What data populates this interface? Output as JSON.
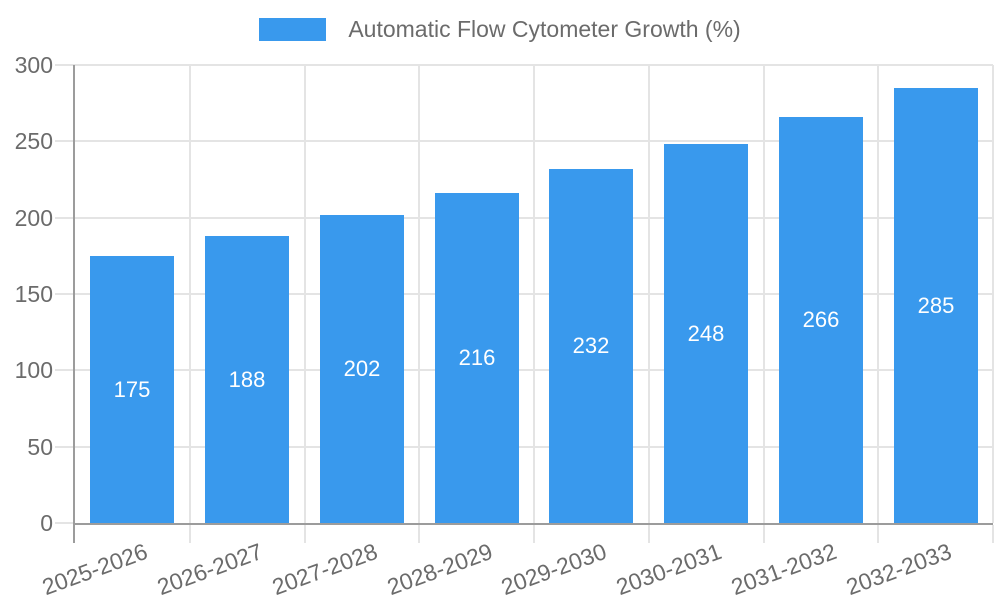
{
  "chart_data": {
    "type": "bar",
    "legend_label": "Automatic Flow Cytometer Growth (%)",
    "legend_position": "top-center",
    "categories": [
      "2025-2026",
      "2026-2027",
      "2027-2028",
      "2028-2029",
      "2029-2030",
      "2030-2031",
      "2031-2032",
      "2032-2033"
    ],
    "values": [
      175,
      188,
      202,
      216,
      232,
      248,
      266,
      285
    ],
    "ylim": [
      0,
      300
    ],
    "yticks": [
      0,
      50,
      100,
      150,
      200,
      250,
      300
    ],
    "grid": true,
    "x_label_rotation_deg": -20,
    "value_label_position": "inside-center",
    "colors": {
      "bar": "#3999ED",
      "value_label": "#FFFFFF",
      "axis_text": "#6B6B6B",
      "grid_line": "#E4E4E4",
      "axis_line": "#9C9C9C",
      "background": "#FFFFFF"
    }
  }
}
